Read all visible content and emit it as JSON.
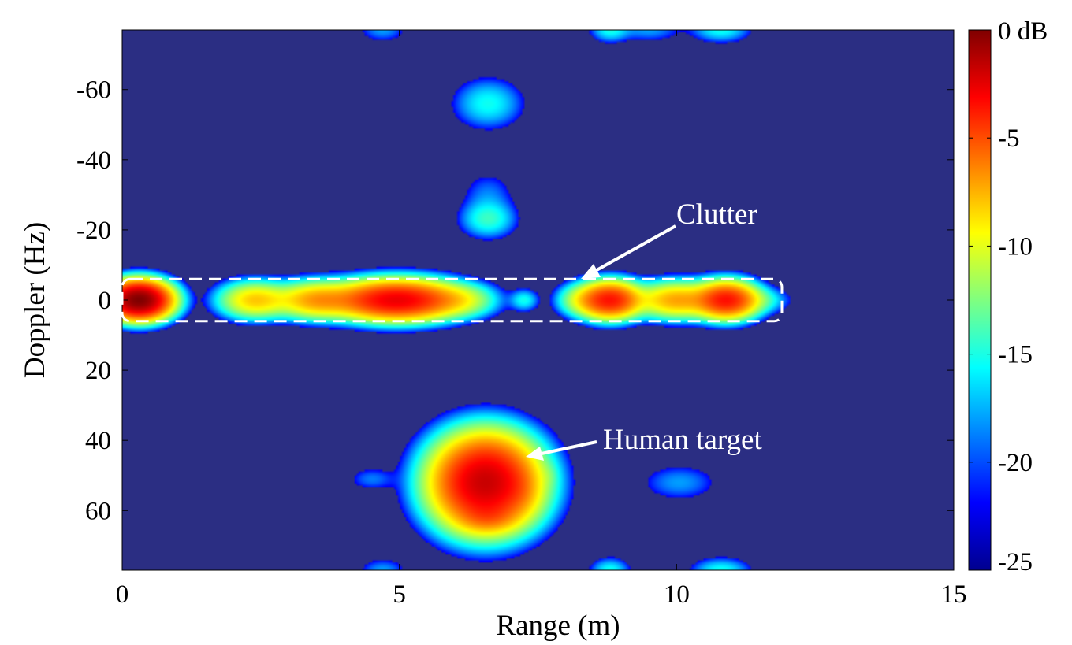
{
  "chart_data": {
    "type": "heatmap",
    "title": "",
    "xlabel": "Range (m)",
    "ylabel": "Doppler (Hz)",
    "xlim": [
      0,
      15
    ],
    "ylim": [
      -77,
      77
    ],
    "y_axis_direction": "increasing downward",
    "grid": false,
    "x_ticks": [
      0,
      5,
      10,
      15
    ],
    "x_tick_labels": [
      "0",
      "5",
      "10",
      "15"
    ],
    "y_ticks": [
      -60,
      -40,
      -20,
      0,
      20,
      40,
      60
    ],
    "y_tick_labels": [
      "-60",
      "-40",
      "-20",
      "0",
      "20",
      "40",
      "60"
    ],
    "colorbar": {
      "range": [
        -25,
        0
      ],
      "unit": "dB",
      "ticks": [
        0,
        -5,
        -10,
        -15,
        -20,
        -25
      ],
      "tick_labels": [
        "0 dB",
        "-5",
        "-10",
        "-15",
        "-20",
        "-25"
      ],
      "colormap": "jet"
    },
    "background_dB": -25,
    "blobs": [
      {
        "range": 0.3,
        "doppler": 0,
        "range_spread": 0.3,
        "doppler_spread": 2.8,
        "peak_dB": 0
      },
      {
        "range": 2.4,
        "doppler": 0,
        "range_spread": 0.35,
        "doppler_spread": 2.8,
        "peak_dB": -9
      },
      {
        "range": 3.5,
        "doppler": 0,
        "range_spread": 0.4,
        "doppler_spread": 2.8,
        "peak_dB": -8
      },
      {
        "range": 4.95,
        "doppler": 0,
        "range_spread": 0.6,
        "doppler_spread": 3,
        "peak_dB": -3
      },
      {
        "range": 6.1,
        "doppler": 0,
        "range_spread": 0.35,
        "doppler_spread": 2.5,
        "peak_dB": -13
      },
      {
        "range": 7.25,
        "doppler": 0,
        "range_spread": 0.15,
        "doppler_spread": 1.8,
        "peak_dB": -17
      },
      {
        "range": 8.3,
        "doppler": 0,
        "range_spread": 0.25,
        "doppler_spread": 2.5,
        "peak_dB": -13
      },
      {
        "range": 8.8,
        "doppler": 0,
        "range_spread": 0.3,
        "doppler_spread": 2.8,
        "peak_dB": -4
      },
      {
        "range": 10.0,
        "doppler": 0,
        "range_spread": 0.4,
        "doppler_spread": 2.8,
        "peak_dB": -8
      },
      {
        "range": 10.9,
        "doppler": 0,
        "range_spread": 0.3,
        "doppler_spread": 2.8,
        "peak_dB": -4
      },
      {
        "range": 11.5,
        "doppler": 0,
        "range_spread": 0.3,
        "doppler_spread": 2,
        "peak_dB": -17
      },
      {
        "range": 6.55,
        "doppler": 52,
        "range_spread": 0.5,
        "doppler_spread": 7,
        "peak_dB": -2
      },
      {
        "range": 7.2,
        "doppler": 55,
        "range_spread": 0.2,
        "doppler_spread": 4,
        "peak_dB": -16
      },
      {
        "range": 6.6,
        "doppler": 62,
        "range_spread": 0.3,
        "doppler_spread": 2.5,
        "peak_dB": -11
      },
      {
        "range": 6.6,
        "doppler": 43,
        "range_spread": 0.3,
        "doppler_spread": 3,
        "peak_dB": -21
      },
      {
        "range": 6.6,
        "doppler": -23,
        "range_spread": 0.28,
        "doppler_spread": 3,
        "peak_dB": -16
      },
      {
        "range": 6.6,
        "doppler": -30,
        "range_spread": 0.28,
        "doppler_spread": 4,
        "peak_dB": -21
      },
      {
        "range": 6.6,
        "doppler": -56,
        "range_spread": 0.35,
        "doppler_spread": 4,
        "peak_dB": -17
      },
      {
        "range": 4.5,
        "doppler": 51,
        "range_spread": 0.25,
        "doppler_spread": 2,
        "peak_dB": -21
      },
      {
        "range": 7.7,
        "doppler": 50,
        "range_spread": 0.1,
        "doppler_spread": 2,
        "peak_dB": -22
      },
      {
        "range": 10.05,
        "doppler": 52,
        "range_spread": 0.4,
        "doppler_spread": 3,
        "peak_dB": -20
      },
      {
        "range": 4.7,
        "doppler": -77,
        "range_spread": 0.25,
        "doppler_spread": 2,
        "peak_dB": -20
      },
      {
        "range": 8.8,
        "doppler": -77,
        "range_spread": 0.2,
        "doppler_spread": 2,
        "peak_dB": -17
      },
      {
        "range": 9.5,
        "doppler": -77,
        "range_spread": 0.35,
        "doppler_spread": 2,
        "peak_dB": -20
      },
      {
        "range": 10.8,
        "doppler": -77,
        "range_spread": 0.3,
        "doppler_spread": 2,
        "peak_dB": -17
      },
      {
        "range": 4.7,
        "doppler": 77,
        "range_spread": 0.25,
        "doppler_spread": 2,
        "peak_dB": -20
      },
      {
        "range": 8.8,
        "doppler": 77,
        "range_spread": 0.2,
        "doppler_spread": 2,
        "peak_dB": -17
      },
      {
        "range": 10.8,
        "doppler": 77,
        "range_spread": 0.3,
        "doppler_spread": 2,
        "peak_dB": -17
      }
    ],
    "annotations": [
      {
        "text": "Clutter",
        "box": {
          "range": [
            0,
            11.9
          ],
          "doppler": [
            -6,
            6
          ]
        }
      },
      {
        "text": "Human target",
        "points_to": {
          "range": 7.3,
          "doppler": 44
        }
      }
    ]
  }
}
